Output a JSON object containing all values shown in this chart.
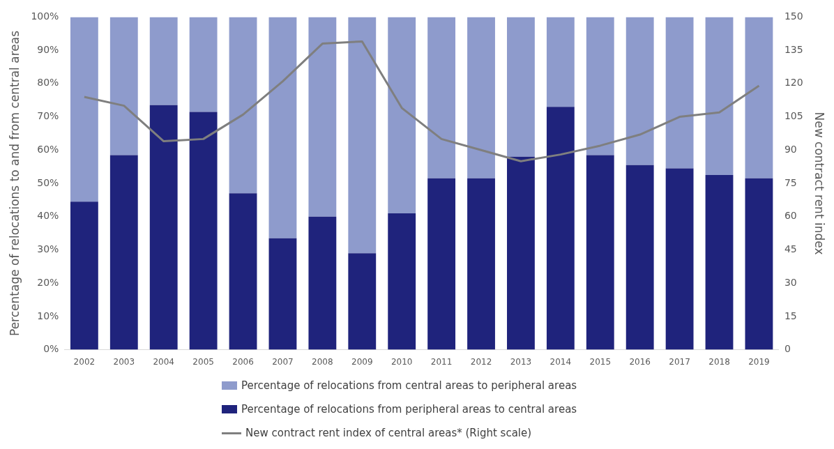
{
  "chart_data": {
    "type": "bar",
    "stacked": true,
    "categories": [
      "2002",
      "2003",
      "2004",
      "2005",
      "2006",
      "2007",
      "2008",
      "2009",
      "2010",
      "2011",
      "2012",
      "2013",
      "2014",
      "2015",
      "2016",
      "2017",
      "2018",
      "2019"
    ],
    "series": [
      {
        "name": "Percentage of relocations from peripheral areas to central areas",
        "color": "#1f237c",
        "values": [
          44.5,
          58.5,
          73.5,
          71.5,
          47,
          33.5,
          40,
          29,
          41,
          51.5,
          51.5,
          58,
          73,
          58.5,
          55.5,
          54.5,
          52.5,
          51.5
        ]
      },
      {
        "name": "Percentage of relocations from central areas to peripheral areas",
        "color": "#8e9bcc",
        "values": [
          55.5,
          41.5,
          26.5,
          28.5,
          53,
          66.5,
          60,
          71,
          59,
          48.5,
          48.5,
          42,
          27,
          41.5,
          44.5,
          45.5,
          47.5,
          48.5
        ]
      },
      {
        "name": "New contract rent index of central areas* (Right scale)",
        "color": "#7f7f7f",
        "type": "line",
        "axis": "y2",
        "values": [
          114,
          110,
          94,
          95,
          106,
          121,
          138,
          139,
          109,
          95,
          90,
          85,
          88,
          92,
          97,
          105,
          107,
          119
        ]
      }
    ],
    "ylabel": "Percentage of relocations to and from central areas",
    "y2label": "New contract rent index",
    "ylim": [
      0,
      100
    ],
    "yticks": [
      {
        "value": 0,
        "label": "0%"
      },
      {
        "value": 10,
        "label": "10%"
      },
      {
        "value": 20,
        "label": "20%"
      },
      {
        "value": 30,
        "label": "30%"
      },
      {
        "value": 40,
        "label": "40%"
      },
      {
        "value": 50,
        "label": "50%"
      },
      {
        "value": 60,
        "label": "60%"
      },
      {
        "value": 70,
        "label": "70%"
      },
      {
        "value": 80,
        "label": "80%"
      },
      {
        "value": 90,
        "label": "90%"
      },
      {
        "value": 100,
        "label": "100%"
      }
    ],
    "y2lim": [
      0,
      150
    ],
    "y2ticks": [
      0,
      15,
      30,
      45,
      60,
      75,
      90,
      105,
      120,
      135,
      150
    ],
    "grid": false,
    "legend": "bottom",
    "marker": "none"
  }
}
